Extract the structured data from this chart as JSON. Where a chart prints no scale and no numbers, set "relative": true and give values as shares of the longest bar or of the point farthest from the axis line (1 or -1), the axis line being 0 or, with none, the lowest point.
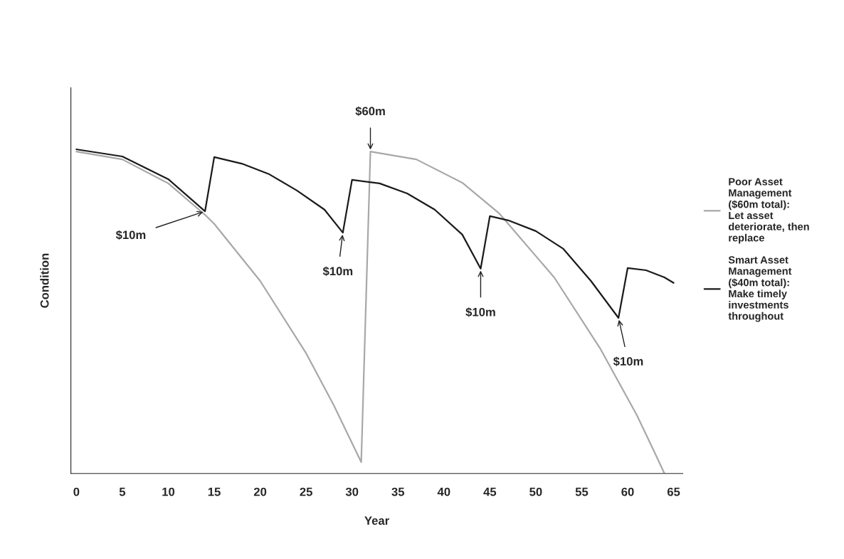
{
  "chart_data": {
    "type": "line",
    "relative": true,
    "xlabel": "Year",
    "ylabel": "Condition",
    "xlim": [
      -0.6,
      66
    ],
    "xticks": [
      0,
      5,
      10,
      15,
      20,
      25,
      30,
      35,
      40,
      45,
      50,
      55,
      60,
      65
    ],
    "legend": "right",
    "grid": false,
    "marker": "none",
    "line_style": "solid",
    "series": [
      {
        "name": "Poor Asset\nManagement\n($60m total):\nLet asset\ndeteriorate, then\nreplace",
        "color": "#a8a8a8",
        "x": [
          0,
          5,
          10,
          14,
          15,
          20,
          25,
          28,
          31,
          32,
          37,
          42,
          46,
          52,
          57,
          61,
          63,
          64
        ],
        "values": [
          0.993,
          0.969,
          0.895,
          0.798,
          0.77,
          0.594,
          0.371,
          0.211,
          0.035,
          0.993,
          0.969,
          0.897,
          0.803,
          0.605,
          0.386,
          0.18,
          0.061,
          0
        ]
      },
      {
        "name": "Smart Asset\nManagement\n($40m total):\nMake timely\ninvestments\nthroughout",
        "color": "#1a1a1a",
        "x": [
          0,
          5,
          10,
          14,
          15,
          18,
          21,
          24,
          27,
          29,
          30,
          33,
          36,
          39,
          42,
          44,
          45,
          47,
          50,
          53,
          56,
          59,
          60,
          62,
          64,
          65
        ],
        "values": [
          1.0,
          0.978,
          0.908,
          0.809,
          0.976,
          0.956,
          0.923,
          0.873,
          0.814,
          0.743,
          0.906,
          0.895,
          0.864,
          0.814,
          0.737,
          0.632,
          0.794,
          0.781,
          0.748,
          0.693,
          0.594,
          0.48,
          0.634,
          0.627,
          0.605,
          0.588
        ]
      }
    ],
    "annotations": [
      {
        "text": "$10m",
        "x": 14,
        "y": 0.809
      },
      {
        "text": "$10m",
        "x": 29,
        "y": 0.743
      },
      {
        "text": "$60m",
        "x": 32,
        "y": 0.993
      },
      {
        "text": "$10m",
        "x": 44,
        "y": 0.632
      },
      {
        "text": "$10m",
        "x": 59,
        "y": 0.48
      }
    ]
  }
}
